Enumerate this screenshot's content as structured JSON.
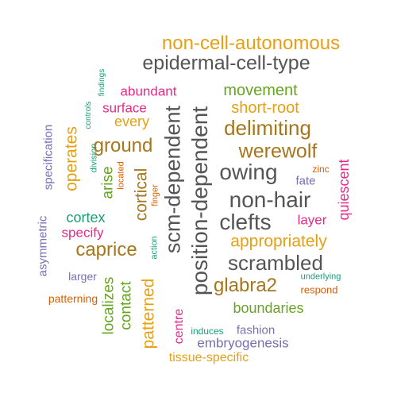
{
  "words": [
    {
      "text": "non-cell-autonomous",
      "color": "#e6a012",
      "vertical": false
    },
    {
      "text": "epidermal-cell-type",
      "color": "#555555",
      "vertical": false
    },
    {
      "text": "findings",
      "color": "#1a9e77",
      "vertical": true
    },
    {
      "text": "controls",
      "color": "#1a9e77",
      "vertical": true
    },
    {
      "text": "abundant",
      "color": "#e7298a",
      "vertical": false
    },
    {
      "text": "movement",
      "color": "#66a61e",
      "vertical": false
    },
    {
      "text": "surface",
      "color": "#e7298a",
      "vertical": false
    },
    {
      "text": "short-root",
      "color": "#e6a012",
      "vertical": false
    },
    {
      "text": "every",
      "color": "#e6a012",
      "vertical": false
    },
    {
      "text": "delimiting",
      "color": "#a6761d",
      "vertical": false
    },
    {
      "text": "specification",
      "color": "#7570b3",
      "vertical": true
    },
    {
      "text": "operates",
      "color": "#e6a012",
      "vertical": true
    },
    {
      "text": "division",
      "color": "#1a9e77",
      "vertical": true
    },
    {
      "text": "ground",
      "color": "#a6761d",
      "vertical": false
    },
    {
      "text": "werewolf",
      "color": "#a6761d",
      "vertical": false
    },
    {
      "text": "located",
      "color": "#d95f02",
      "vertical": true
    },
    {
      "text": "scm-dependent",
      "color": "#555555",
      "vertical": true
    },
    {
      "text": "position-dependent",
      "color": "#555555",
      "vertical": true
    },
    {
      "text": "arise",
      "color": "#66a61e",
      "vertical": true
    },
    {
      "text": "cortical",
      "color": "#a6761d",
      "vertical": true
    },
    {
      "text": "finger",
      "color": "#d95f02",
      "vertical": true
    },
    {
      "text": "owing",
      "color": "#555555",
      "vertical": false
    },
    {
      "text": "zinc",
      "color": "#d95f02",
      "vertical": false
    },
    {
      "text": "fate",
      "color": "#7570b3",
      "vertical": false
    },
    {
      "text": "quiescent",
      "color": "#e7298a",
      "vertical": true
    },
    {
      "text": "non-hair",
      "color": "#555555",
      "vertical": false
    },
    {
      "text": "cortex",
      "color": "#1a9e77",
      "vertical": false
    },
    {
      "text": "asymmetric",
      "color": "#7570b3",
      "vertical": true
    },
    {
      "text": "clefts",
      "color": "#555555",
      "vertical": false
    },
    {
      "text": "layer",
      "color": "#e7298a",
      "vertical": false
    },
    {
      "text": "specify",
      "color": "#e7298a",
      "vertical": false
    },
    {
      "text": "appropriately",
      "color": "#e6a012",
      "vertical": false
    },
    {
      "text": "action",
      "color": "#1a9e77",
      "vertical": true
    },
    {
      "text": "caprice",
      "color": "#a6761d",
      "vertical": false
    },
    {
      "text": "scrambled",
      "color": "#555555",
      "vertical": false
    },
    {
      "text": "larger",
      "color": "#7570b3",
      "vertical": false
    },
    {
      "text": "patterned",
      "color": "#e6a012",
      "vertical": true
    },
    {
      "text": "localizes",
      "color": "#66a61e",
      "vertical": true
    },
    {
      "text": "contact",
      "color": "#66a61e",
      "vertical": true
    },
    {
      "text": "glabra2",
      "color": "#a6761d",
      "vertical": false
    },
    {
      "text": "underlying",
      "color": "#1a9e77",
      "vertical": false
    },
    {
      "text": "patterning",
      "color": "#d95f02",
      "vertical": false
    },
    {
      "text": "respond",
      "color": "#d95f02",
      "vertical": false
    },
    {
      "text": "centre",
      "color": "#e7298a",
      "vertical": true
    },
    {
      "text": "boundaries",
      "color": "#66a61e",
      "vertical": false
    },
    {
      "text": "induces",
      "color": "#1a9e77",
      "vertical": false
    },
    {
      "text": "fashion",
      "color": "#7570b3",
      "vertical": false
    },
    {
      "text": "embryogenesis",
      "color": "#7570b3",
      "vertical": false
    },
    {
      "text": "tissue-specific",
      "color": "#e6a012",
      "vertical": false
    }
  ]
}
